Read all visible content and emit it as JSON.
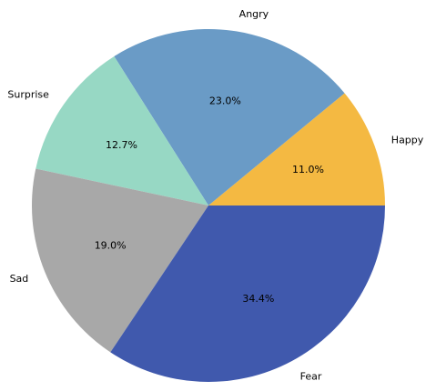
{
  "chart_data": {
    "type": "pie",
    "title": "",
    "slices": [
      {
        "label": "Happy",
        "value": 11.0,
        "pct_text": "11.0%",
        "color": "#F4B942"
      },
      {
        "label": "Angry",
        "value": 23.0,
        "pct_text": "23.0%",
        "color": "#6A9BC6"
      },
      {
        "label": "Surprise",
        "value": 12.7,
        "pct_text": "12.7%",
        "color": "#97D8C4"
      },
      {
        "label": "Sad",
        "value": 19.0,
        "pct_text": "19.0%",
        "color": "#A8A8A8"
      },
      {
        "label": "Fear",
        "value": 34.4,
        "pct_text": "34.4%",
        "color": "#4059AD"
      }
    ],
    "start_angle_deg": 0,
    "direction": "counterclockwise",
    "legend": "none",
    "grid": false
  }
}
